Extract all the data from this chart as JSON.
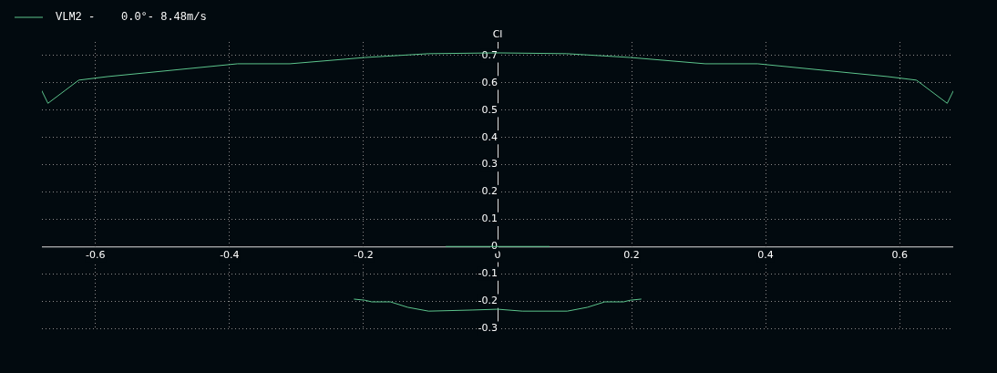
{
  "chart_data": {
    "type": "line",
    "ylabel": "Cl",
    "legend": "top left",
    "grid": true,
    "marker": "none",
    "line_style": "solid",
    "xlim": [
      -0.68,
      0.68
    ],
    "xticks": [
      -0.6,
      -0.4,
      -0.2,
      0,
      0.2,
      0.4,
      0.6
    ],
    "ylim": [
      -0.3,
      0.75
    ],
    "yticks": [
      -0.3,
      -0.2,
      -0.1,
      0,
      0.1,
      0.2,
      0.3,
      0.4,
      0.5,
      0.6,
      0.7
    ],
    "series": [
      {
        "name": "VLM2 -    0.0°- 8.48m/s",
        "color": "#5cc48c",
        "x": [
          -0.68,
          -0.671,
          -0.645,
          -0.625,
          -0.582,
          -0.388,
          -0.31,
          -0.198,
          -0.103,
          0,
          0.103,
          0.198,
          0.31,
          0.388,
          0.582,
          0.625,
          0.645,
          0.671,
          0.68
        ],
        "values": [
          0.57,
          0.525,
          0.573,
          0.61,
          0.623,
          0.67,
          0.67,
          0.693,
          0.707,
          0.71,
          0.707,
          0.693,
          0.67,
          0.67,
          0.623,
          0.61,
          0.573,
          0.525,
          0.57
        ]
      },
      {
        "color": "#5cc48c",
        "x": [
          -0.214,
          -0.198,
          -0.188,
          -0.16,
          -0.134,
          -0.103,
          -0.038,
          0,
          0.037,
          0.104,
          0.134,
          0.16,
          0.188,
          0.198,
          0.214
        ],
        "values": [
          -0.193,
          -0.197,
          -0.203,
          -0.203,
          -0.223,
          -0.237,
          -0.233,
          -0.23,
          -0.237,
          -0.237,
          -0.223,
          -0.203,
          -0.203,
          -0.197,
          -0.193
        ]
      },
      {
        "color": "#5cc48c",
        "x": [
          -0.077,
          0.077
        ],
        "values": [
          0,
          0
        ]
      }
    ]
  }
}
